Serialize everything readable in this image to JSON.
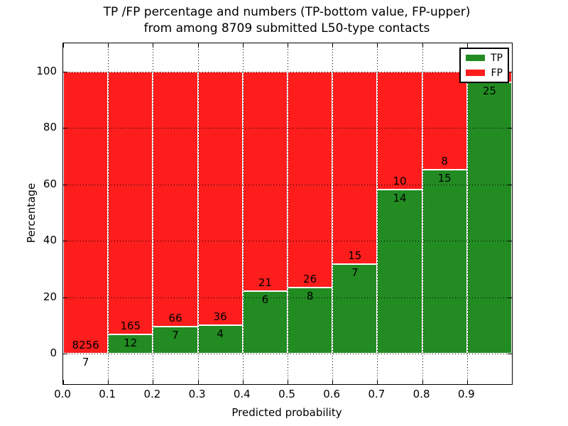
{
  "title": {
    "line1": "TP /FP percentage and numbers (TP-bottom value, FP-upper)",
    "line2": "from among 8709 submitted L50-type contacts"
  },
  "axes": {
    "xlabel": "Predicted probability",
    "ylabel": "Percentage"
  },
  "legend": {
    "position": "upper right",
    "items": [
      {
        "label": "TP",
        "color": "#228b22"
      },
      {
        "label": "FP",
        "color": "#fd1d1d"
      }
    ]
  },
  "colors": {
    "tp": "#228b22",
    "fp": "#fd1d1d",
    "grid": "#000000",
    "frame": "#000000",
    "background": "#ffffff"
  },
  "chart_data": {
    "type": "bar",
    "subtype": "stacked-100-percent",
    "title": "TP /FP percentage and numbers (TP-bottom value, FP-upper) from among 8709 submitted L50-type contacts",
    "xlabel": "Predicted probability",
    "ylabel": "Percentage",
    "grid": "dotted",
    "legend_position": "upper right",
    "xlim": [
      0.0,
      1.0
    ],
    "ylim": [
      -10.8,
      110.1
    ],
    "x_tick_labels": [
      "0.0",
      "0.1",
      "0.2",
      "0.3",
      "0.4",
      "0.5",
      "0.6",
      "0.7",
      "0.8",
      "0.9"
    ],
    "y_ticks": [
      0,
      20,
      40,
      60,
      80,
      100
    ],
    "y_tick_labels": [
      "0",
      "20",
      "40",
      "60",
      "80",
      "100"
    ],
    "categories": [
      "0.0-0.1",
      "0.1-0.2",
      "0.2-0.3",
      "0.3-0.4",
      "0.4-0.5",
      "0.5-0.6",
      "0.6-0.7",
      "0.7-0.8",
      "0.8-0.9",
      "0.9-1.0"
    ],
    "series": [
      {
        "name": "TP",
        "values": [
          7,
          12,
          7,
          4,
          6,
          8,
          7,
          14,
          15,
          25
        ]
      },
      {
        "name": "FP",
        "values": [
          8256,
          165,
          66,
          36,
          21,
          26,
          15,
          10,
          8,
          null
        ]
      }
    ],
    "bars": [
      {
        "bin_start": 0.0,
        "bin_end": 0.1,
        "tp_label": "7",
        "fp_label": "8256",
        "tp_pct": 0.08
      },
      {
        "bin_start": 0.1,
        "bin_end": 0.2,
        "tp_label": "12",
        "fp_label": "165",
        "tp_pct": 6.8
      },
      {
        "bin_start": 0.2,
        "bin_end": 0.3,
        "tp_label": "7",
        "fp_label": "66",
        "tp_pct": 9.6
      },
      {
        "bin_start": 0.3,
        "bin_end": 0.4,
        "tp_label": "4",
        "fp_label": "36",
        "tp_pct": 10.0
      },
      {
        "bin_start": 0.4,
        "bin_end": 0.5,
        "tp_label": "6",
        "fp_label": "21",
        "tp_pct": 22.2
      },
      {
        "bin_start": 0.5,
        "bin_end": 0.6,
        "tp_label": "8",
        "fp_label": "26",
        "tp_pct": 23.5
      },
      {
        "bin_start": 0.6,
        "bin_end": 0.7,
        "tp_label": "7",
        "fp_label": "15",
        "tp_pct": 31.8
      },
      {
        "bin_start": 0.7,
        "bin_end": 0.8,
        "tp_label": "14",
        "fp_label": "10",
        "tp_pct": 58.3
      },
      {
        "bin_start": 0.8,
        "bin_end": 0.9,
        "tp_label": "15",
        "fp_label": "8",
        "tp_pct": 65.2
      },
      {
        "bin_start": 0.9,
        "bin_end": 1.0,
        "tp_label": "25",
        "fp_label": "",
        "tp_pct": 96.2
      }
    ]
  }
}
